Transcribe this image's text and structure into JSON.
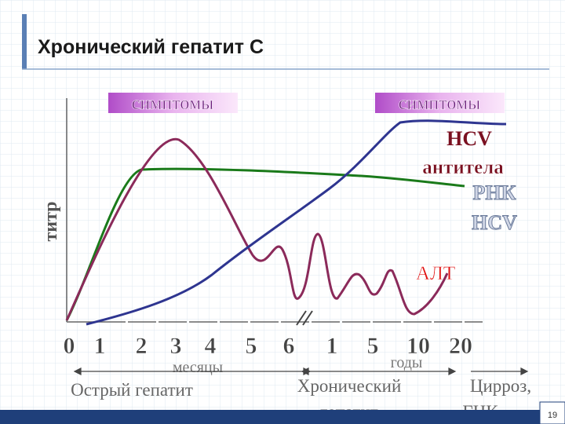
{
  "header": {
    "title": "Хронический гепатит С"
  },
  "labels": {
    "symptoms_1": "симптомы",
    "symptoms_2": "симптомы",
    "hcv": "HCV",
    "antibodies": "антитела",
    "rna_1": "РНК",
    "rna_2": "HCV",
    "titer": "титр",
    "alt": "АЛТ"
  },
  "axis": {
    "ticks": [
      "0",
      "1",
      "2",
      "3",
      "4",
      "5",
      "6",
      "1",
      "5",
      "10",
      "20"
    ],
    "months": "месяцы",
    "years": "годы"
  },
  "phases": {
    "acute": "Острый гепатит",
    "chronic_1": "Хронический",
    "chronic_2": "гепатит",
    "cirrhosis_1": "Цирроз,",
    "cirrhosis_2": "ГЦК"
  },
  "page_number": "19"
}
